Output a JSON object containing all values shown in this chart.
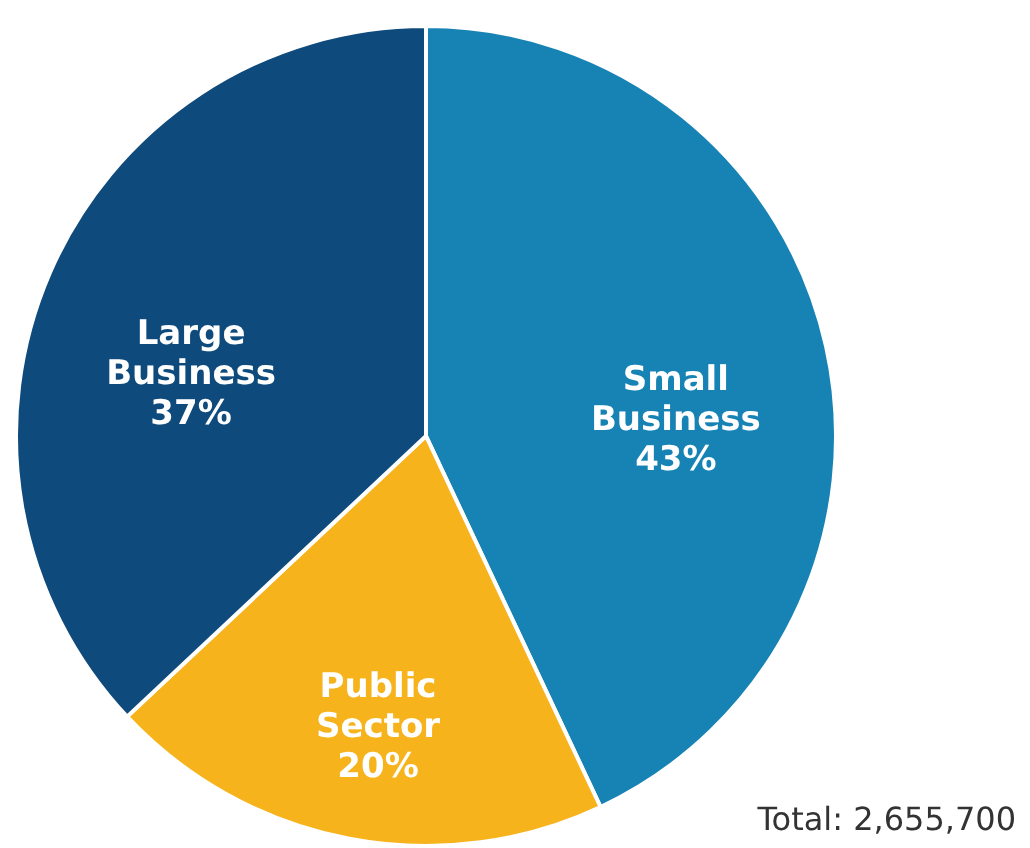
{
  "chart_data": {
    "type": "pie",
    "categories": [
      "Small Business",
      "Public Sector",
      "Large Business"
    ],
    "values": [
      43,
      20,
      37
    ],
    "value_labels": [
      "43%",
      "20%",
      "37%"
    ],
    "colors": [
      "#1783b4",
      "#f6b31b",
      "#0e4a7b"
    ],
    "annotations": [
      "Total: 2,655,700"
    ]
  }
}
